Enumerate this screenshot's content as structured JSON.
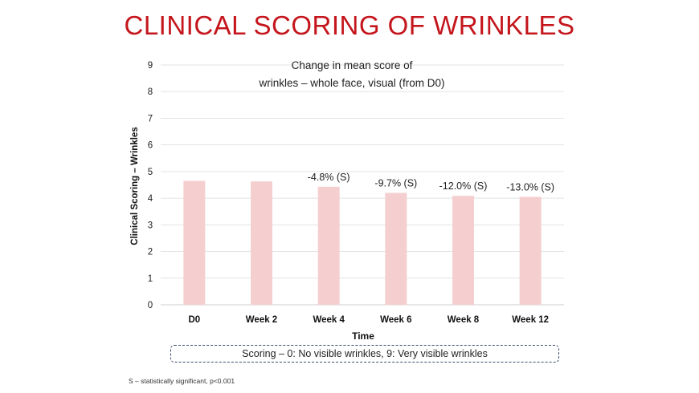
{
  "header": {
    "title": "CLINICAL SCORING OF WRINKLES"
  },
  "chart_data": {
    "type": "bar",
    "title": "Change in mean score of wrinkles – whole face, visual (from D0)",
    "title_lines": [
      "Change in mean score of",
      "wrinkles – whole face, visual (from D0)"
    ],
    "xlabel": "Time",
    "ylabel": "Clinical Scoring – Wrinkles",
    "ylim": [
      0,
      9
    ],
    "yticks": [
      0,
      1,
      2,
      3,
      4,
      5,
      6,
      7,
      8,
      9
    ],
    "grid": true,
    "categories": [
      "D0",
      "Week 2",
      "Week 4",
      "Week 6",
      "Week 8",
      "Week 12"
    ],
    "values": [
      4.65,
      4.63,
      4.43,
      4.2,
      4.09,
      4.05
    ],
    "data_labels": [
      "",
      "",
      "-4.8% (S)",
      "-9.7% (S)",
      "-12.0% (S)",
      "-13.0% (S)"
    ],
    "bar_color": "#f5cfcf",
    "grid_color": "#e3e3e3"
  },
  "legend_box": {
    "text": "Scoring – 0: No visible wrinkles, 9: Very visible wrinkles"
  },
  "footnote": {
    "text": "S – statistically significant, p<0.001"
  },
  "colors": {
    "title": "#c4161c",
    "box_border": "#3a4a6b"
  }
}
